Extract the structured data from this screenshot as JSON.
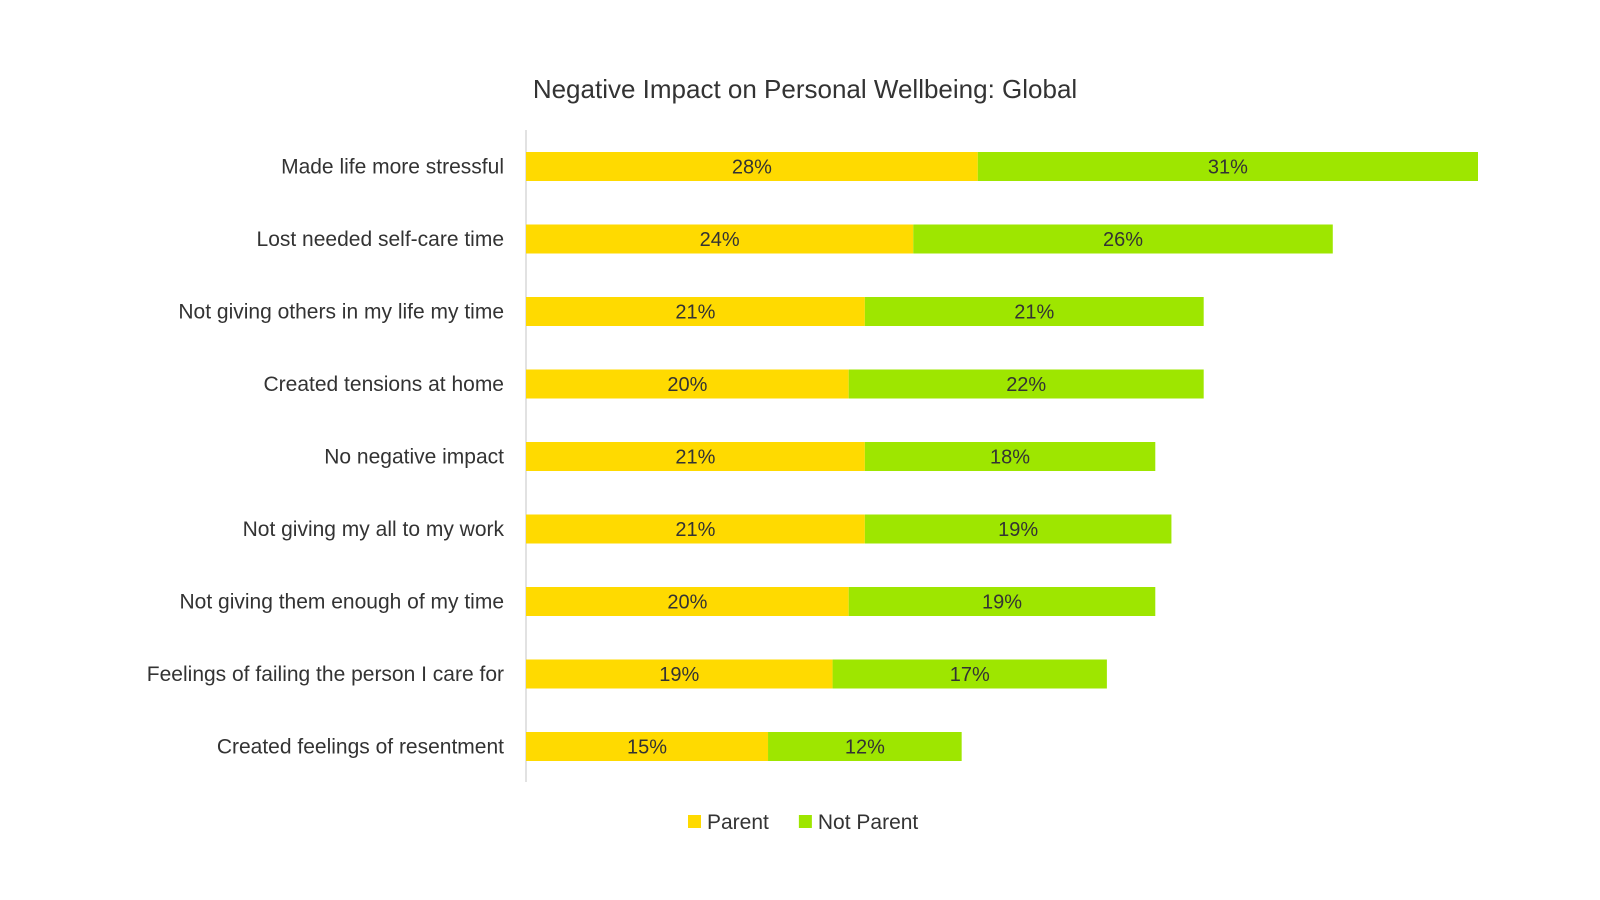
{
  "chart_data": {
    "type": "bar",
    "orientation": "horizontal",
    "stacked": true,
    "title": "Negative Impact on Personal Wellbeing: Global",
    "categories": [
      "Made life more stressful",
      "Lost needed self-care time",
      "Not giving others in my life my time",
      "Created tensions at home",
      "No negative impact",
      "Not giving my all to my work",
      "Not giving them enough of my time",
      "Feelings of failing the person I care for",
      "Created feelings of resentment"
    ],
    "series": [
      {
        "name": "Parent",
        "color": "#FFDA00",
        "values": [
          28,
          24,
          21,
          20,
          21,
          21,
          20,
          19,
          15
        ],
        "labels": [
          "28%",
          "24%",
          "21%",
          "20%",
          "21%",
          "21%",
          "20%",
          "19%",
          "15%"
        ]
      },
      {
        "name": "Not Parent",
        "color": "#9EE600",
        "values": [
          31,
          26,
          21,
          22,
          18,
          19,
          19,
          17,
          12
        ],
        "labels": [
          "31%",
          "26%",
          "21%",
          "22%",
          "18%",
          "19%",
          "19%",
          "17%",
          "12%"
        ]
      }
    ],
    "xlim": [
      0,
      59
    ],
    "grid": false,
    "legend": "bottom",
    "axis_color": "#d9d9d9"
  }
}
